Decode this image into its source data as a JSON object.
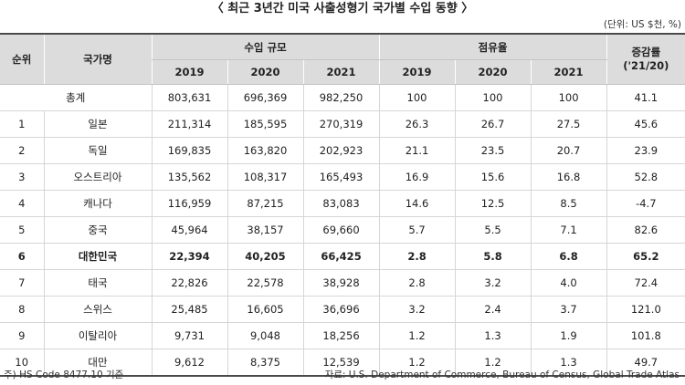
{
  "title": "〈 최근 3년간 미국 사출성형기 국가별 수입 동향 〉",
  "unit": "(단위: US $천, %)",
  "headers": {
    "rank": "순위",
    "country": "국가명",
    "import_scale": "수입 규모",
    "share": "점유율",
    "growth_line1": "증감률",
    "growth_line2": "('21/20)",
    "years": [
      "2019",
      "2020",
      "2021"
    ]
  },
  "total_row": {
    "label": "총계",
    "values": [
      "803,631",
      "696,369",
      "982,250",
      "100",
      "100",
      "100",
      "41.1"
    ]
  },
  "rows": [
    {
      "rank": "1",
      "country": "일본",
      "values": [
        "211,314",
        "185,595",
        "270,319",
        "26.3",
        "26.7",
        "27.5",
        "45.6"
      ]
    },
    {
      "rank": "2",
      "country": "독일",
      "values": [
        "169,835",
        "163,820",
        "202,923",
        "21.1",
        "23.5",
        "20.7",
        "23.9"
      ]
    },
    {
      "rank": "3",
      "country": "오스트리아",
      "values": [
        "135,562",
        "108,317",
        "165,493",
        "16.9",
        "15.6",
        "16.8",
        "52.8"
      ]
    },
    {
      "rank": "4",
      "country": "캐나다",
      "values": [
        "116,959",
        "87,215",
        "83,083",
        "14.6",
        "12.5",
        "8.5",
        "-4.7"
      ]
    },
    {
      "rank": "5",
      "country": "중국",
      "values": [
        "45,964",
        "38,157",
        "69,660",
        "5.7",
        "5.5",
        "7.1",
        "82.6"
      ]
    },
    {
      "rank": "6",
      "country": "대한민국",
      "values": [
        "22,394",
        "40,205",
        "66,425",
        "2.8",
        "5.8",
        "6.8",
        "65.2"
      ]
    },
    {
      "rank": "7",
      "country": "태국",
      "values": [
        "22,826",
        "22,578",
        "38,928",
        "2.8",
        "3.2",
        "4.0",
        "72.4"
      ]
    },
    {
      "rank": "8",
      "country": "스위스",
      "values": [
        "25,485",
        "16,605",
        "36,696",
        "3.2",
        "2.4",
        "3.7",
        "121.0"
      ]
    },
    {
      "rank": "9",
      "country": "이탈리아",
      "values": [
        "9,731",
        "9,048",
        "18,256",
        "1.2",
        "1.3",
        "1.9",
        "101.8"
      ]
    },
    {
      "rank": "10",
      "country": "대만",
      "values": [
        "9,612",
        "8,375",
        "12,539",
        "1.2",
        "1.2",
        "1.3",
        "49.7"
      ]
    }
  ],
  "note": "주) HS Code 8477.10 기준",
  "source": "자료: U.S. Department of Commerce, Bureau of Census, Global Trade Atlas"
}
